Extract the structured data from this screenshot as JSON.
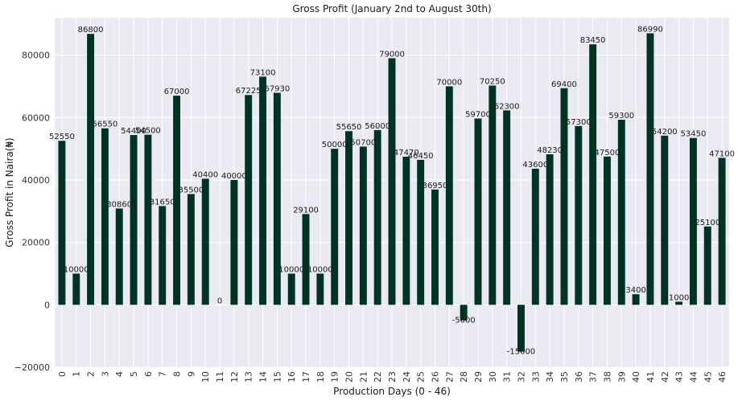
{
  "chart_data": {
    "type": "bar",
    "title": "Gross Profit (January 2nd to August 30th)",
    "xlabel": "Production Days (0 - 46)",
    "ylabel": "Gross Profit in Naira(₦)",
    "categories": [
      "0",
      "1",
      "2",
      "3",
      "4",
      "5",
      "6",
      "7",
      "8",
      "9",
      "10",
      "11",
      "12",
      "13",
      "14",
      "15",
      "16",
      "17",
      "18",
      "19",
      "20",
      "21",
      "22",
      "23",
      "24",
      "25",
      "26",
      "27",
      "28",
      "29",
      "30",
      "31",
      "32",
      "33",
      "34",
      "35",
      "36",
      "37",
      "38",
      "39",
      "40",
      "41",
      "42",
      "43",
      "44",
      "45",
      "46"
    ],
    "values": [
      52550,
      10000,
      86800,
      56550,
      30860,
      54400,
      54500,
      31650,
      67000,
      35500,
      40400,
      0,
      40000,
      67225,
      73100,
      67930,
      10000,
      29100,
      10000,
      50000,
      55650,
      50700,
      56000,
      79000,
      47470,
      46450,
      36950,
      70000,
      -5000,
      59700,
      70250,
      62300,
      -15000,
      43600,
      48230,
      69400,
      57300,
      83450,
      47500,
      59300,
      3400,
      86990,
      54200,
      1000,
      53450,
      25100,
      47100
    ],
    "data_labels": [
      "52550",
      "10000",
      "86800",
      "56550",
      "30860",
      "54400",
      "54500",
      "31650",
      "67000",
      "35500",
      "40400",
      "0",
      "40000",
      "67225",
      "73100",
      "67930",
      "10000",
      "29100",
      "10000",
      "50000",
      "55650",
      "50700",
      "56000",
      "79000",
      "47470",
      "46450",
      "36950",
      "70000",
      "-5000",
      "59700",
      "70250",
      "62300",
      "-15000",
      "43600",
      "48230",
      "69400",
      "57300",
      "83450",
      "47500",
      "59300",
      "3400",
      "86990",
      "54200",
      "1000",
      "53450",
      "25100",
      "47100"
    ],
    "yticks": [
      -20000,
      0,
      20000,
      40000,
      60000,
      80000
    ],
    "ytick_labels": [
      "−20000",
      "0",
      "20000",
      "40000",
      "60000",
      "80000"
    ],
    "ylim": [
      -20000,
      92000
    ],
    "grid": true,
    "colors": {
      "bar": "#003322",
      "background": "#eaeaf2",
      "grid": "#ffffff"
    }
  }
}
